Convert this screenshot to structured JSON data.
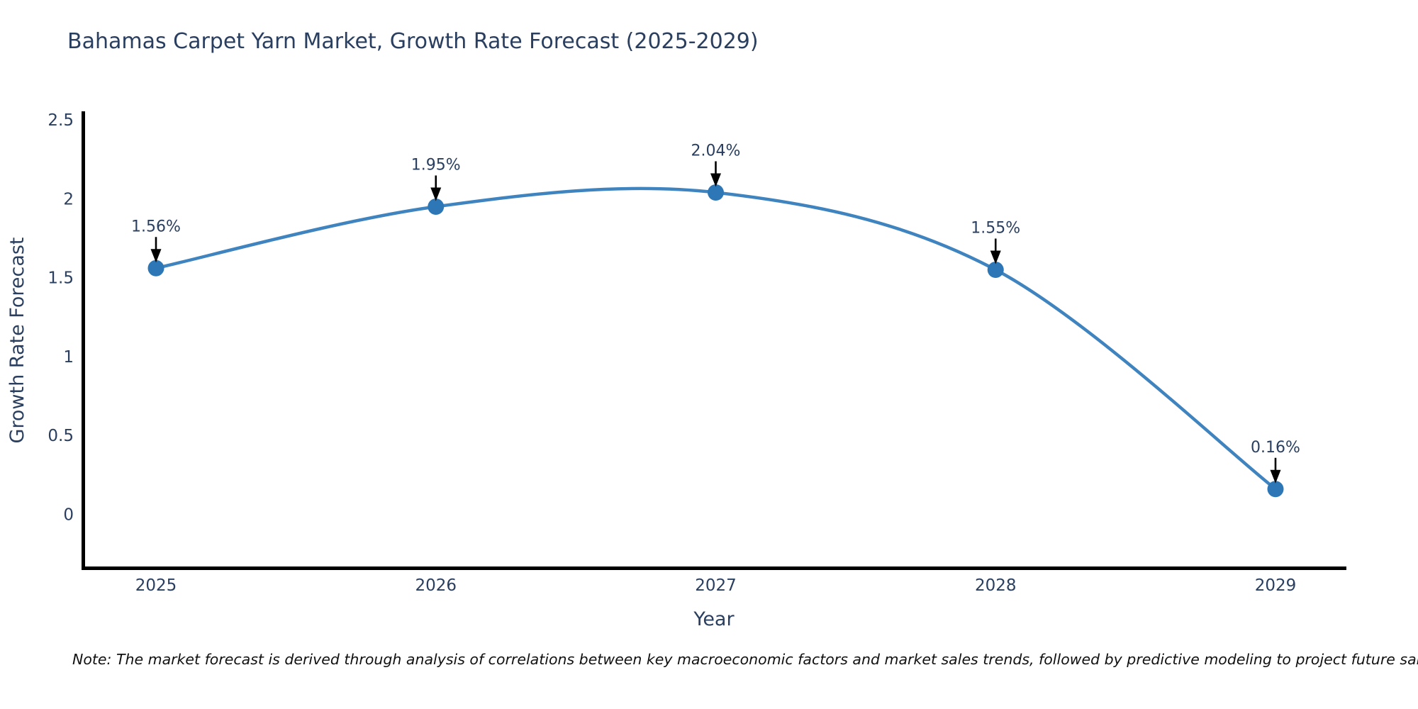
{
  "title": "Bahamas Carpet Yarn Market, Growth Rate Forecast (2025-2029)",
  "note": "Note: The market forecast is derived through analysis of correlations between key macroeconomic factors and market sales trends, followed by predictive modeling to project future sales",
  "chart_data": {
    "type": "line",
    "line_shape": "spline",
    "title": "Bahamas Carpet Yarn Market, Growth Rate Forecast (2025-2029)",
    "xlabel": "Year",
    "ylabel": "Growth Rate Forecast",
    "categories": [
      "2025",
      "2026",
      "2027",
      "2028",
      "2029"
    ],
    "values": [
      1.56,
      1.95,
      2.04,
      1.55,
      0.16
    ],
    "point_labels": [
      "1.56%",
      "1.95%",
      "2.04%",
      "1.55%",
      "0.16%"
    ],
    "yticks": [
      0,
      0.5,
      1,
      1.5,
      2,
      2.5
    ],
    "ytick_labels": [
      "0",
      "0.5",
      "1",
      "1.5",
      "2",
      "2.5"
    ],
    "ylim": [
      -0.34,
      2.55
    ],
    "grid": false,
    "legend": "none",
    "markers": true,
    "annotations_arrows": true,
    "colors": {
      "line": "#3f84bf",
      "marker": "#2e77b6",
      "text": "#2a3f5f",
      "axis": "#000000",
      "arrow": "#000000",
      "note_text": "#111111"
    }
  }
}
